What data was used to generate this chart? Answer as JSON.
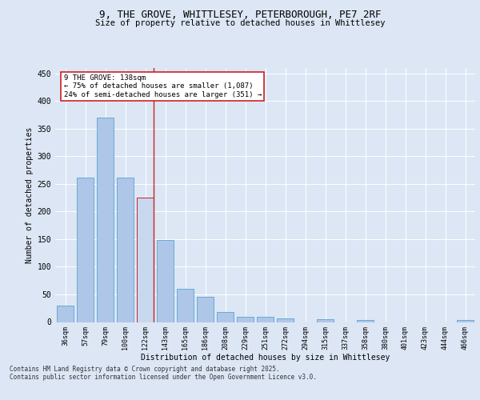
{
  "title_line1": "9, THE GROVE, WHITTLESEY, PETERBOROUGH, PE7 2RF",
  "title_line2": "Size of property relative to detached houses in Whittlesey",
  "xlabel": "Distribution of detached houses by size in Whittlesey",
  "ylabel": "Number of detached properties",
  "categories": [
    "36sqm",
    "57sqm",
    "79sqm",
    "100sqm",
    "122sqm",
    "143sqm",
    "165sqm",
    "186sqm",
    "208sqm",
    "229sqm",
    "251sqm",
    "272sqm",
    "294sqm",
    "315sqm",
    "337sqm",
    "358sqm",
    "380sqm",
    "401sqm",
    "423sqm",
    "444sqm",
    "466sqm"
  ],
  "values": [
    30,
    262,
    370,
    262,
    226,
    148,
    60,
    45,
    18,
    10,
    9,
    6,
    0,
    5,
    0,
    3,
    0,
    0,
    0,
    0,
    3
  ],
  "bar_color": "#aec6e8",
  "bar_edge_color": "#6aaad4",
  "highlight_bar_index": 4,
  "highlight_color": "#c8d8ee",
  "highlight_edge_color": "#cc2222",
  "vline_color": "#cc2222",
  "annotation_text": "9 THE GROVE: 138sqm\n← 75% of detached houses are smaller (1,087)\n24% of semi-detached houses are larger (351) →",
  "annotation_box_color": "#ffffff",
  "annotation_box_edge": "#cc2222",
  "ylim": [
    0,
    460
  ],
  "yticks": [
    0,
    50,
    100,
    150,
    200,
    250,
    300,
    350,
    400,
    450
  ],
  "background_color": "#dce6f5",
  "plot_bg_color": "#dce6f5",
  "grid_color": "#ffffff",
  "footer_line1": "Contains HM Land Registry data © Crown copyright and database right 2025.",
  "footer_line2": "Contains public sector information licensed under the Open Government Licence v3.0."
}
